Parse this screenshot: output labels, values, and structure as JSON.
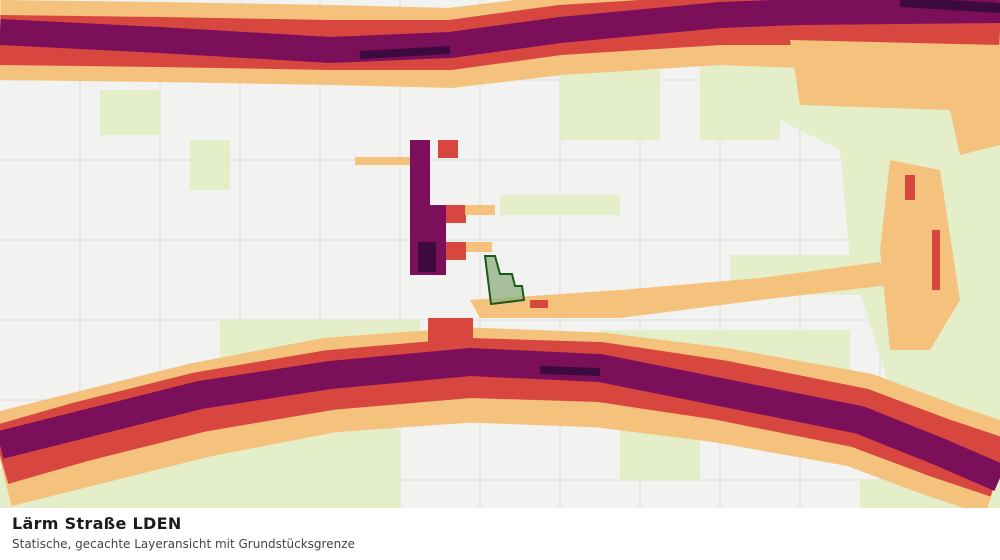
{
  "footer": {
    "title": "Lärm Straße LDEN",
    "subtitle": "Statische, gecachte Layeransicht mit Grundstücksgrenze"
  }
}
